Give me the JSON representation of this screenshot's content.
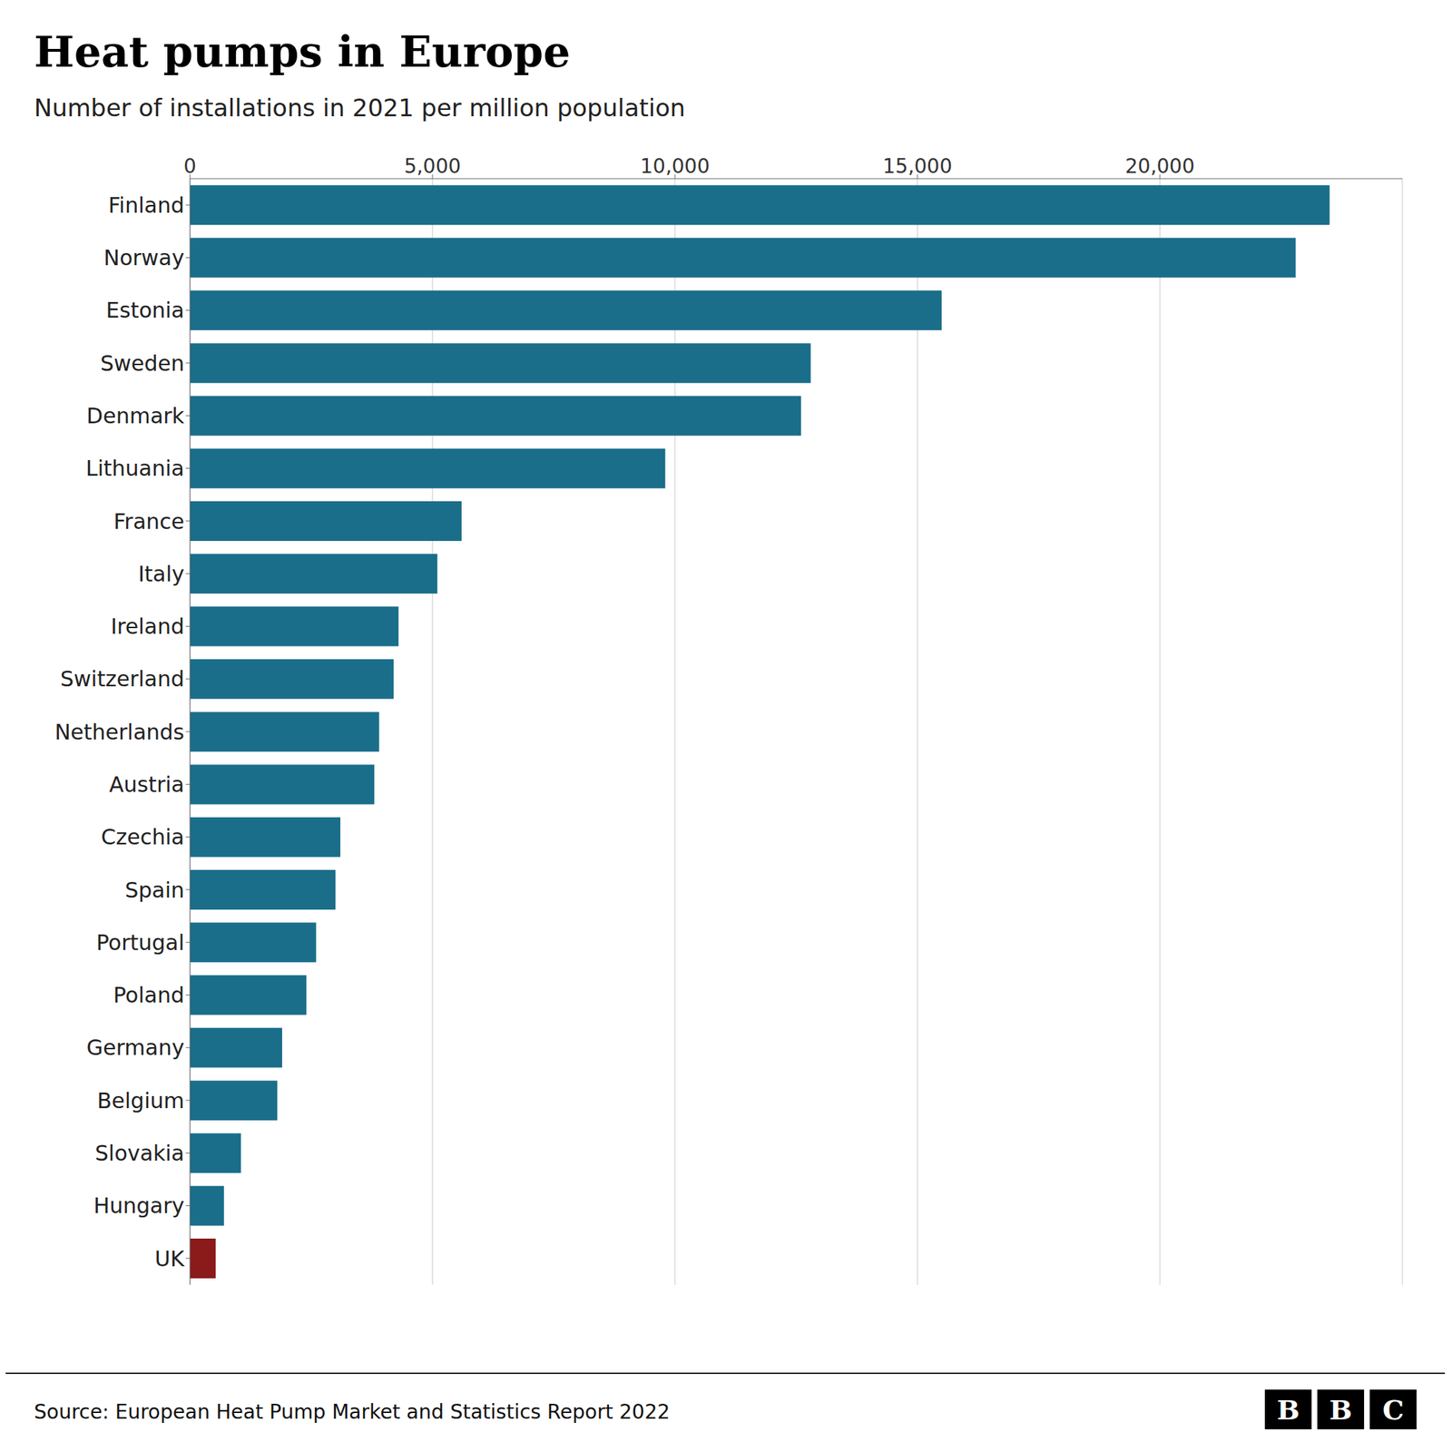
{
  "chart_data": {
    "type": "bar",
    "orientation": "horizontal",
    "title": "Heat pumps in Europe",
    "subtitle": "Number of installations in 2021 per million population",
    "annotations": [
      "Source: European Heat Pump Market and Statistics Report 2022",
      "B",
      "B",
      "C"
    ],
    "categories": [
      "Finland",
      "Norway",
      "Estonia",
      "Sweden",
      "Denmark",
      "Lithuania",
      "France",
      "Italy",
      "Ireland",
      "Switzerland",
      "Netherlands",
      "Austria",
      "Czechia",
      "Spain",
      "Portugal",
      "Poland",
      "Germany",
      "Belgium",
      "Slovakia",
      "Hungary",
      "UK"
    ],
    "values": [
      23500,
      22800,
      15500,
      12800,
      12600,
      9800,
      5600,
      5100,
      4300,
      4200,
      3900,
      3800,
      3100,
      3000,
      2600,
      2400,
      1900,
      1800,
      1050,
      700,
      530
    ],
    "colors": [
      "#1a6e8a",
      "#1a6e8a",
      "#1a6e8a",
      "#1a6e8a",
      "#1a6e8a",
      "#1a6e8a",
      "#1a6e8a",
      "#1a6e8a",
      "#1a6e8a",
      "#1a6e8a",
      "#1a6e8a",
      "#1a6e8a",
      "#1a6e8a",
      "#1a6e8a",
      "#1a6e8a",
      "#1a6e8a",
      "#1a6e8a",
      "#1a6e8a",
      "#1a6e8a",
      "#1a6e8a",
      "#8b1a1a"
    ],
    "xlim": [
      0,
      25000
    ],
    "xticks": [
      0,
      {
        "value": 5000,
        "label": "5,000"
      },
      {
        "value": 10000,
        "label": "10,000"
      },
      {
        "value": 15000,
        "label": "15,000"
      },
      {
        "value": 20000,
        "label": "20,000"
      }
    ],
    "grid": true
  }
}
